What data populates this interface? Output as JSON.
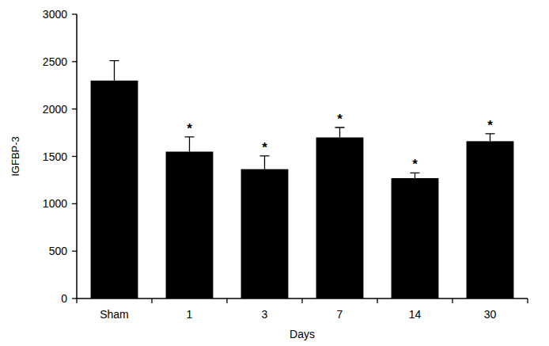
{
  "chart_data": {
    "type": "bar",
    "x_label": "Days",
    "y_label": "IGFBP-3",
    "categories": [
      "Sham",
      "1",
      "3",
      "7",
      "14",
      "30"
    ],
    "values": [
      2300,
      1550,
      1365,
      1700,
      1270,
      1660
    ],
    "errors": [
      210,
      155,
      140,
      105,
      55,
      80
    ],
    "significance": [
      null,
      "*",
      "*",
      "*",
      "*",
      "*"
    ],
    "color": "#000000",
    "ylim": [
      0,
      3000
    ],
    "yticks": [
      0,
      500,
      1000,
      1500,
      2000,
      2500,
      3000
    ],
    "grid": false
  }
}
